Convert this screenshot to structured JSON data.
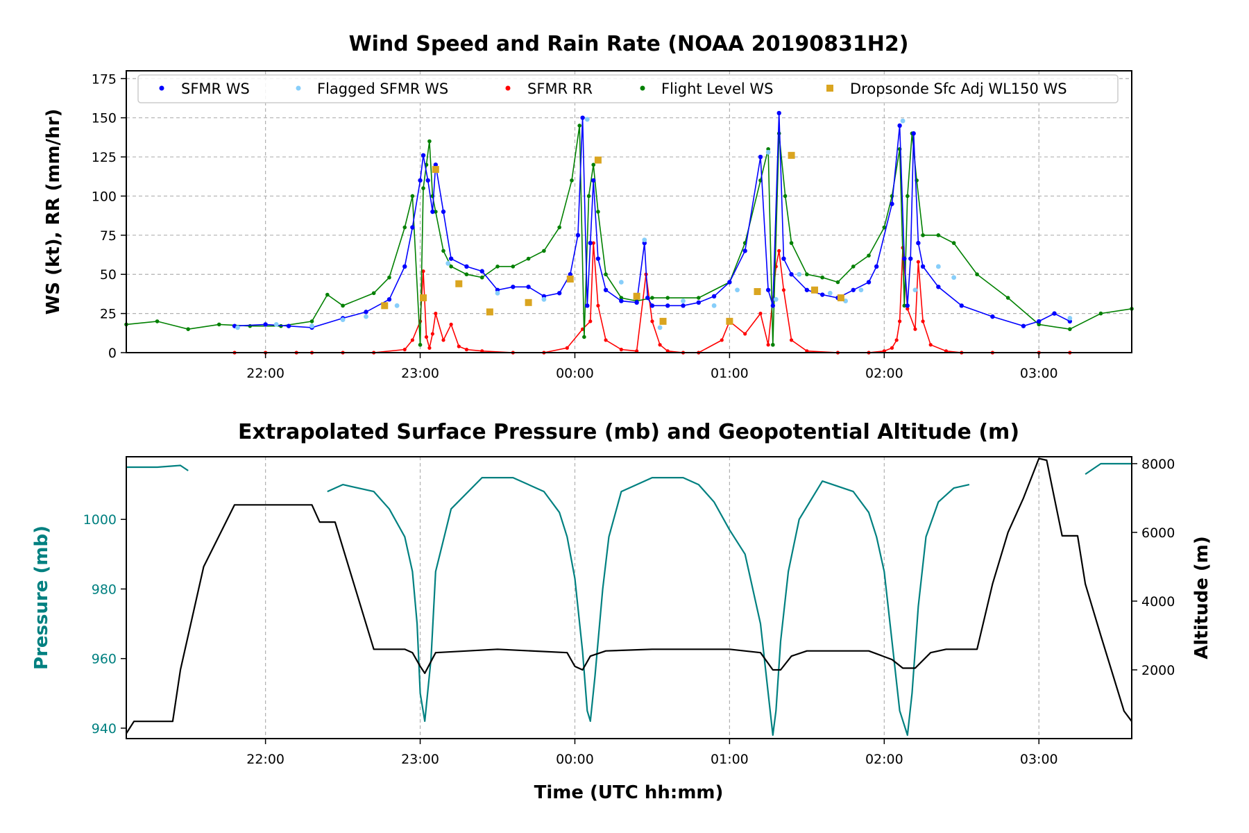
{
  "colors": {
    "sfmr_ws": "#0000ff",
    "flagged_sfmr_ws": "#87cefa",
    "sfmr_rr": "#ff0000",
    "flight_level_ws": "#008000",
    "dropsonde": "#daa520",
    "pressure": "#008080",
    "altitude": "#000000"
  },
  "chart_data": [
    {
      "type": "line",
      "title": "Wind Speed and Rain Rate (NOAA 20190831H2)",
      "xlabel": "",
      "ylabel": "WS (kt), RR (mm/hr)",
      "x_unit": "hours after 00:00 UTC (21:06 to 03:36)",
      "xlim": [
        -2.9,
        3.6
      ],
      "ylim": [
        0,
        180
      ],
      "yticks": [
        0,
        25,
        50,
        75,
        100,
        125,
        150,
        175
      ],
      "xticks": [
        -2,
        -1,
        0,
        1,
        2,
        3
      ],
      "xtick_labels": [
        "22:00",
        "23:00",
        "00:00",
        "01:00",
        "02:00",
        "03:00"
      ],
      "grid": true,
      "legend_position": "top",
      "legend": [
        "SFMR WS",
        "Flagged SFMR WS",
        "SFMR RR",
        "Flight Level WS",
        "Dropsonde Sfc Adj WL150 WS"
      ],
      "series": [
        {
          "name": "SFMR WS",
          "x": [
            -2.2,
            -2.0,
            -1.85,
            -1.7,
            -1.5,
            -1.35,
            -1.2,
            -1.1,
            -1.05,
            -1.0,
            -0.98,
            -0.95,
            -0.92,
            -0.9,
            -0.85,
            -0.8,
            -0.7,
            -0.6,
            -0.5,
            -0.4,
            -0.3,
            -0.2,
            -0.1,
            -0.03,
            0.02,
            0.05,
            0.08,
            0.1,
            0.12,
            0.15,
            0.2,
            0.3,
            0.4,
            0.45,
            0.47,
            0.5,
            0.6,
            0.7,
            0.8,
            0.9,
            1.0,
            1.1,
            1.2,
            1.25,
            1.28,
            1.32,
            1.35,
            1.4,
            1.5,
            1.6,
            1.7,
            1.8,
            1.9,
            1.95,
            2.05,
            2.1,
            2.13,
            2.15,
            2.17,
            2.19,
            2.22,
            2.25,
            2.35,
            2.5,
            2.7,
            2.9,
            3.0,
            3.1,
            3.2
          ],
          "y": [
            17,
            18,
            17,
            16,
            22,
            26,
            34,
            55,
            80,
            110,
            126,
            110,
            90,
            120,
            90,
            60,
            55,
            52,
            40,
            42,
            42,
            36,
            38,
            50,
            75,
            150,
            30,
            70,
            110,
            60,
            40,
            33,
            32,
            70,
            35,
            30,
            30,
            30,
            32,
            36,
            45,
            65,
            125,
            40,
            30,
            153,
            60,
            50,
            40,
            37,
            35,
            40,
            45,
            55,
            95,
            145,
            60,
            30,
            60,
            140,
            70,
            55,
            42,
            30,
            23,
            17,
            20,
            25,
            20
          ]
        },
        {
          "name": "Flagged SFMR WS",
          "x": [
            -2.18,
            -1.93,
            -1.7,
            -1.5,
            -1.35,
            -1.15,
            -0.82,
            -0.5,
            -0.2,
            0.08,
            0.3,
            0.45,
            0.55,
            0.7,
            0.9,
            1.05,
            1.25,
            1.3,
            1.45,
            1.65,
            1.75,
            1.85,
            2.12,
            2.2,
            2.35,
            2.45,
            3.2
          ],
          "y": [
            16,
            18,
            17,
            21,
            23,
            30,
            57,
            38,
            34,
            149,
            45,
            72,
            16,
            33,
            30,
            40,
            128,
            34,
            50,
            38,
            33,
            40,
            148,
            40,
            55,
            48,
            22
          ]
        },
        {
          "name": "SFMR RR",
          "x": [
            -2.2,
            -2.0,
            -1.8,
            -1.7,
            -1.5,
            -1.3,
            -1.1,
            -1.05,
            -1.0,
            -0.98,
            -0.96,
            -0.94,
            -0.92,
            -0.9,
            -0.85,
            -0.8,
            -0.75,
            -0.7,
            -0.6,
            -0.4,
            -0.2,
            -0.05,
            0.05,
            0.1,
            0.12,
            0.15,
            0.2,
            0.3,
            0.4,
            0.46,
            0.5,
            0.55,
            0.6,
            0.7,
            0.8,
            0.95,
            1.0,
            1.1,
            1.2,
            1.25,
            1.3,
            1.32,
            1.35,
            1.4,
            1.5,
            1.7,
            1.9,
            2.0,
            2.05,
            2.08,
            2.1,
            2.12,
            2.15,
            2.2,
            2.22,
            2.25,
            2.3,
            2.4,
            2.5,
            2.7,
            3.0,
            3.2
          ],
          "y": [
            0,
            0,
            0,
            0,
            0,
            0,
            2,
            8,
            20,
            52,
            10,
            3,
            12,
            25,
            8,
            18,
            4,
            2,
            1,
            0,
            0,
            3,
            15,
            20,
            70,
            30,
            8,
            2,
            1,
            50,
            20,
            5,
            1,
            0,
            0,
            8,
            20,
            12,
            25,
            5,
            55,
            65,
            40,
            8,
            1,
            0,
            0,
            1,
            3,
            8,
            20,
            67,
            28,
            15,
            58,
            20,
            5,
            1,
            0,
            0,
            0,
            0
          ]
        },
        {
          "name": "Flight Level WS",
          "x": [
            -2.9,
            -2.7,
            -2.5,
            -2.3,
            -2.1,
            -1.9,
            -1.7,
            -1.6,
            -1.5,
            -1.3,
            -1.2,
            -1.1,
            -1.05,
            -1.0,
            -0.98,
            -0.96,
            -0.94,
            -0.92,
            -0.9,
            -0.85,
            -0.8,
            -0.7,
            -0.6,
            -0.5,
            -0.4,
            -0.3,
            -0.2,
            -0.1,
            -0.02,
            0.03,
            0.06,
            0.09,
            0.12,
            0.15,
            0.2,
            0.3,
            0.4,
            0.5,
            0.6,
            0.8,
            1.0,
            1.1,
            1.2,
            1.25,
            1.28,
            1.32,
            1.36,
            1.4,
            1.5,
            1.6,
            1.7,
            1.8,
            1.9,
            2.0,
            2.05,
            2.1,
            2.13,
            2.15,
            2.18,
            2.21,
            2.25,
            2.35,
            2.45,
            2.6,
            2.8,
            3.0,
            3.2,
            3.4,
            3.6
          ],
          "y": [
            18,
            20,
            15,
            18,
            17,
            17,
            20,
            37,
            30,
            38,
            48,
            80,
            100,
            5,
            105,
            120,
            135,
            100,
            90,
            65,
            55,
            50,
            48,
            55,
            55,
            60,
            65,
            80,
            110,
            145,
            10,
            100,
            120,
            90,
            50,
            35,
            33,
            35,
            35,
            35,
            45,
            70,
            110,
            130,
            5,
            140,
            100,
            70,
            50,
            48,
            45,
            55,
            62,
            80,
            100,
            130,
            30,
            100,
            140,
            110,
            75,
            75,
            70,
            50,
            35,
            18,
            15,
            25,
            28
          ]
        },
        {
          "name": "Dropsonde Sfc Adj WL150 WS",
          "x": [
            -1.23,
            -0.98,
            -0.9,
            -0.75,
            -0.55,
            -0.3,
            -0.03,
            0.15,
            0.4,
            0.57,
            1.0,
            1.18,
            1.4,
            1.55,
            1.72
          ],
          "y": [
            30,
            35,
            117,
            44,
            26,
            32,
            47,
            123,
            36,
            20,
            20,
            39,
            126,
            40,
            35
          ]
        }
      ]
    },
    {
      "type": "line",
      "title": "Extrapolated Surface Pressure (mb) and Geopotential Altitude (m)",
      "xlabel": "Time (UTC hh:mm)",
      "ylabel": "Pressure (mb)",
      "ylabel_right": "Altitude (m)",
      "x_unit": "hours after 00:00 UTC (21:06 to 03:36)",
      "xlim": [
        -2.9,
        3.6
      ],
      "ylim": [
        937,
        1018
      ],
      "ylim_right": [
        0,
        8200
      ],
      "yticks": [
        940,
        960,
        980,
        1000
      ],
      "yticks_right": [
        2000,
        4000,
        6000,
        8000
      ],
      "xticks": [
        -2,
        -1,
        0,
        1,
        2,
        3
      ],
      "xtick_labels": [
        "22:00",
        "23:00",
        "00:00",
        "01:00",
        "02:00",
        "03:00"
      ],
      "grid": true,
      "series": [
        {
          "name": "Pressure",
          "segments": [
            {
              "x": [
                -2.9,
                -2.7,
                -2.55,
                -2.5
              ],
              "y": [
                1015,
                1015,
                1015.5,
                1014
              ]
            },
            {
              "x": [
                -1.6,
                -1.5,
                -1.3,
                -1.2,
                -1.1,
                -1.05,
                -1.02,
                -1.0,
                -0.97,
                -0.93,
                -0.9,
                -0.8,
                -0.6,
                -0.4,
                -0.2,
                -0.1,
                -0.05,
                0.0,
                0.05,
                0.08,
                0.1,
                0.13,
                0.18,
                0.22,
                0.3,
                0.5,
                0.7,
                0.8,
                0.9,
                1.0,
                1.1,
                1.2,
                1.25,
                1.28,
                1.3,
                1.33,
                1.38,
                1.45,
                1.6,
                1.8,
                1.9,
                1.95,
                2.0,
                2.05,
                2.1,
                2.15,
                2.18,
                2.22,
                2.27,
                2.35,
                2.45,
                2.55
              ],
              "y": [
                1008,
                1010,
                1008,
                1003,
                995,
                985,
                970,
                950,
                942,
                960,
                985,
                1003,
                1012,
                1012,
                1008,
                1002,
                995,
                983,
                962,
                945,
                942,
                955,
                980,
                995,
                1008,
                1012,
                1012,
                1010,
                1005,
                997,
                990,
                970,
                950,
                938,
                945,
                965,
                985,
                1000,
                1011,
                1008,
                1002,
                995,
                985,
                965,
                945,
                938,
                950,
                975,
                995,
                1005,
                1009,
                1010
              ]
            },
            {
              "x": [
                3.3,
                3.4,
                3.5,
                3.6
              ],
              "y": [
                1013,
                1016,
                1016,
                1016
              ]
            }
          ]
        },
        {
          "name": "Altitude",
          "x": [
            -2.9,
            -2.85,
            -2.6,
            -2.55,
            -2.4,
            -2.2,
            -2.0,
            -1.8,
            -1.7,
            -1.65,
            -1.55,
            -1.3,
            -1.1,
            -1.05,
            -1.0,
            -0.97,
            -0.9,
            -0.5,
            -0.05,
            0.0,
            0.05,
            0.1,
            0.2,
            0.5,
            1.0,
            1.2,
            1.28,
            1.33,
            1.4,
            1.5,
            1.9,
            2.05,
            2.12,
            2.2,
            2.3,
            2.4,
            2.6,
            2.7,
            2.8,
            2.9,
            3.0,
            3.05,
            3.1,
            3.15,
            3.25,
            3.3,
            3.4,
            3.55,
            3.6
          ],
          "y": [
            150,
            500,
            500,
            2000,
            5000,
            6800,
            6800,
            6800,
            6800,
            6300,
            6300,
            2600,
            2600,
            2500,
            2100,
            1900,
            2500,
            2600,
            2500,
            2100,
            2000,
            2400,
            2550,
            2600,
            2600,
            2500,
            2000,
            2000,
            2400,
            2550,
            2550,
            2300,
            2050,
            2050,
            2500,
            2600,
            2600,
            4500,
            6000,
            7000,
            8150,
            8100,
            7000,
            5900,
            5900,
            4500,
            3000,
            800,
            500
          ]
        }
      ]
    }
  ]
}
